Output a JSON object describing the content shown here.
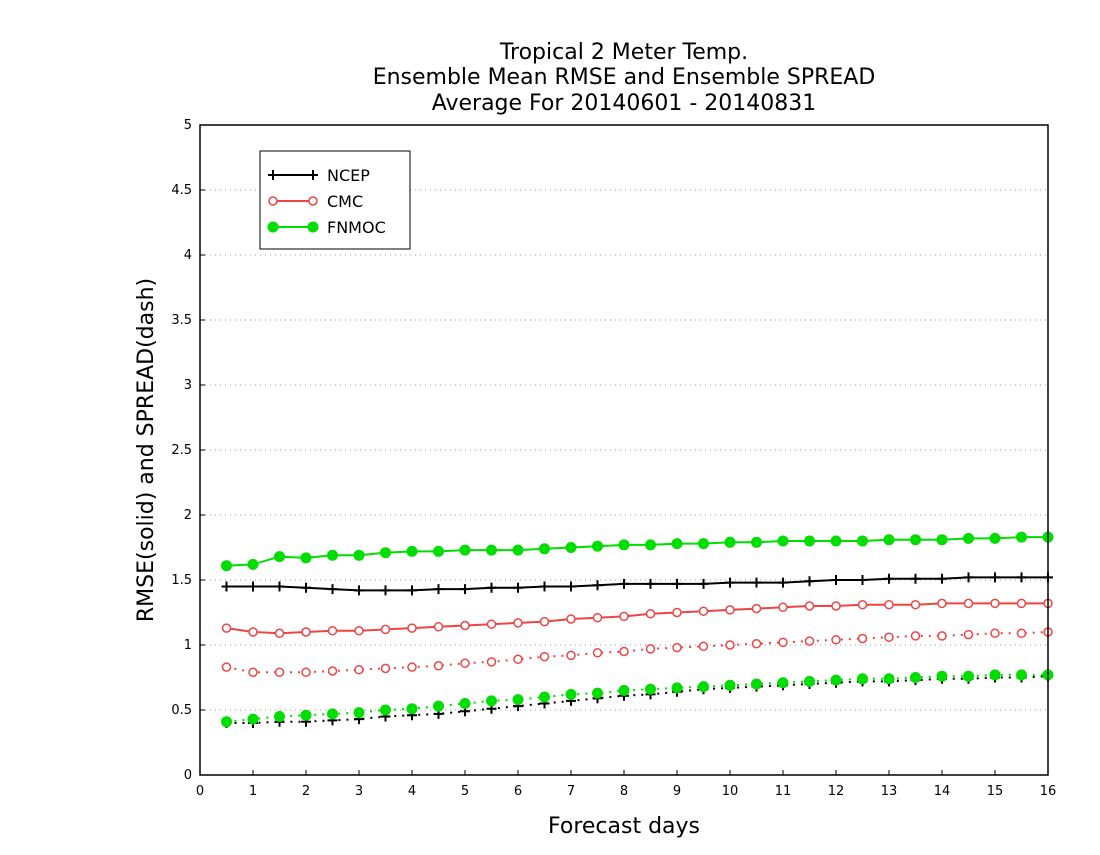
{
  "chart_data": {
    "type": "line",
    "title": [
      "Tropical 2 Meter Temp.",
      "Ensemble Mean RMSE and Ensemble SPREAD",
      "Average For 20140601 - 20140831"
    ],
    "xlabel": "Forecast days",
    "ylabel": "RMSE(solid) and SPREAD(dash)",
    "xlim": [
      0,
      16
    ],
    "ylim": [
      0,
      5
    ],
    "xticks": [
      "0",
      "1",
      "2",
      "3",
      "4",
      "5",
      "6",
      "7",
      "8",
      "9",
      "10",
      "11",
      "12",
      "13",
      "14",
      "15",
      "16"
    ],
    "yticks": [
      "0",
      "0.5",
      "1",
      "1.5",
      "2",
      "2.5",
      "3",
      "3.5",
      "4",
      "4.5",
      "5"
    ],
    "grid": "horizontal dotted",
    "legend_position": "top-left",
    "x": [
      0.5,
      1,
      1.5,
      2,
      2.5,
      3,
      3.5,
      4,
      4.5,
      5,
      5.5,
      6,
      6.5,
      7,
      7.5,
      8,
      8.5,
      9,
      9.5,
      10,
      10.5,
      11,
      11.5,
      12,
      12.5,
      13,
      13.5,
      14,
      14.5,
      15,
      15.5,
      16
    ],
    "series": [
      {
        "name": "NCEP",
        "color": "#000000",
        "marker": "plus",
        "rmse": [
          1.45,
          1.45,
          1.45,
          1.44,
          1.43,
          1.42,
          1.42,
          1.42,
          1.43,
          1.43,
          1.44,
          1.44,
          1.45,
          1.45,
          1.46,
          1.47,
          1.47,
          1.47,
          1.47,
          1.48,
          1.48,
          1.48,
          1.49,
          1.5,
          1.5,
          1.51,
          1.51,
          1.51,
          1.52,
          1.52,
          1.52,
          1.52
        ],
        "spread": [
          0.4,
          0.4,
          0.41,
          0.41,
          0.42,
          0.43,
          0.45,
          0.46,
          0.47,
          0.49,
          0.51,
          0.53,
          0.55,
          0.57,
          0.59,
          0.61,
          0.62,
          0.64,
          0.66,
          0.67,
          0.68,
          0.69,
          0.7,
          0.71,
          0.72,
          0.72,
          0.73,
          0.74,
          0.74,
          0.75,
          0.75,
          0.76
        ]
      },
      {
        "name": "CMC",
        "color": "#ee4444",
        "marker": "open-circle",
        "rmse": [
          1.13,
          1.1,
          1.09,
          1.1,
          1.11,
          1.11,
          1.12,
          1.13,
          1.14,
          1.15,
          1.16,
          1.17,
          1.18,
          1.2,
          1.21,
          1.22,
          1.24,
          1.25,
          1.26,
          1.27,
          1.28,
          1.29,
          1.3,
          1.3,
          1.31,
          1.31,
          1.31,
          1.32,
          1.32,
          1.32,
          1.32,
          1.32
        ],
        "spread": [
          0.83,
          0.79,
          0.79,
          0.79,
          0.8,
          0.81,
          0.82,
          0.83,
          0.84,
          0.86,
          0.87,
          0.89,
          0.91,
          0.92,
          0.94,
          0.95,
          0.97,
          0.98,
          0.99,
          1.0,
          1.01,
          1.02,
          1.03,
          1.04,
          1.05,
          1.06,
          1.07,
          1.07,
          1.08,
          1.09,
          1.09,
          1.1
        ]
      },
      {
        "name": "FNMOC",
        "color": "#00dd00",
        "marker": "filled-circle",
        "rmse": [
          1.61,
          1.62,
          1.68,
          1.67,
          1.69,
          1.69,
          1.71,
          1.72,
          1.72,
          1.73,
          1.73,
          1.73,
          1.74,
          1.75,
          1.76,
          1.77,
          1.77,
          1.78,
          1.78,
          1.79,
          1.79,
          1.8,
          1.8,
          1.8,
          1.8,
          1.81,
          1.81,
          1.81,
          1.82,
          1.82,
          1.83,
          1.83
        ],
        "spread": [
          0.41,
          0.43,
          0.45,
          0.46,
          0.47,
          0.48,
          0.5,
          0.51,
          0.53,
          0.55,
          0.57,
          0.58,
          0.6,
          0.62,
          0.63,
          0.65,
          0.66,
          0.67,
          0.68,
          0.69,
          0.7,
          0.71,
          0.72,
          0.73,
          0.74,
          0.74,
          0.75,
          0.76,
          0.76,
          0.77,
          0.77,
          0.77
        ]
      }
    ]
  }
}
